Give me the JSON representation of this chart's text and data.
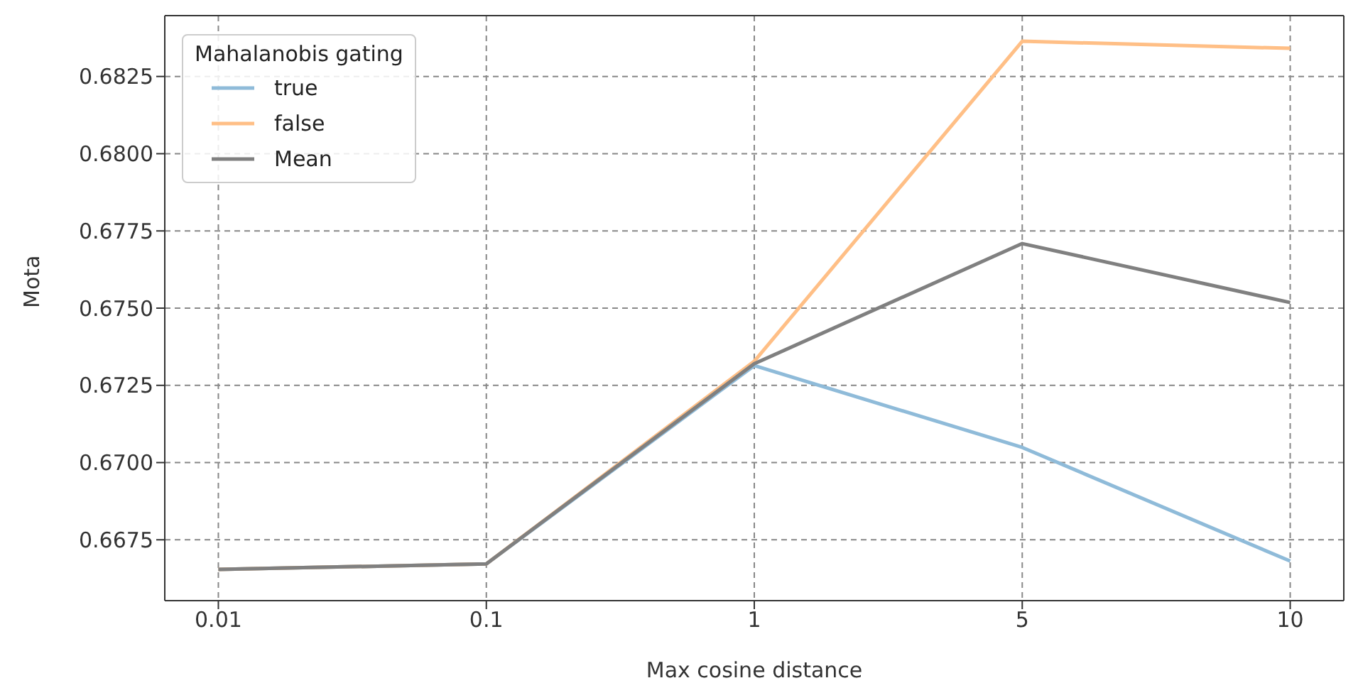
{
  "chart_data": {
    "type": "line",
    "xlabel": "Max cosine distance",
    "ylabel": "Mota",
    "legend_title": "Mahalanobis gating",
    "categories": [
      "0.01",
      "0.1",
      "1",
      "5",
      "10"
    ],
    "series": [
      {
        "name": "true",
        "color": "#8fbbd9",
        "values": [
          0.66654,
          0.66672,
          0.67314,
          0.67049,
          0.66681
        ]
      },
      {
        "name": "false",
        "color": "#ffbf86",
        "values": [
          0.66654,
          0.66672,
          0.67328,
          0.68364,
          0.68341
        ]
      },
      {
        "name": "Mean",
        "color": "#808080",
        "values": [
          0.66654,
          0.66672,
          0.6732,
          0.67709,
          0.67518
        ]
      }
    ],
    "ylim": [
      0.66553,
      0.68447
    ],
    "yticks": [
      0.6675,
      {
        "value": 0.67,
        "label": "0.6700"
      },
      0.6725,
      {
        "value": 0.675,
        "label": "0.6750"
      },
      0.6775,
      {
        "value": 0.68,
        "label": "0.6800"
      },
      0.6825
    ],
    "grid": true,
    "legend": "top left",
    "marker": "none",
    "line_style": "solid"
  }
}
